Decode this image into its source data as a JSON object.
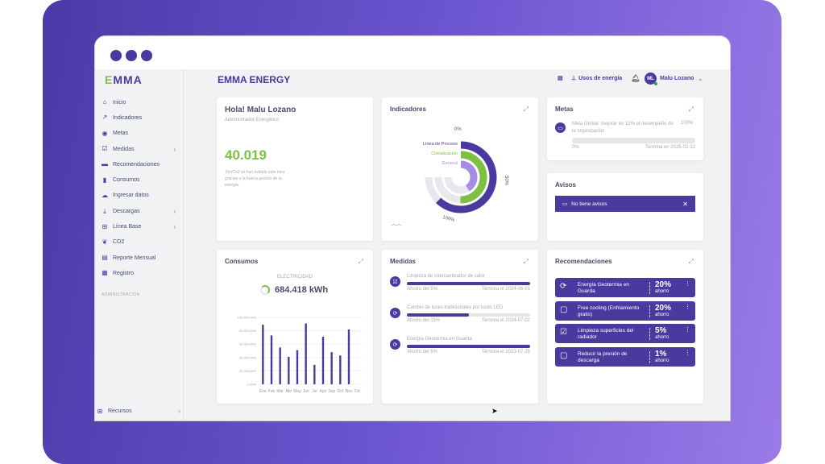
{
  "brand": {
    "logo": "EMMA",
    "title": "EMMA ENERGY"
  },
  "header": {
    "energy_uses": "Usos de energía",
    "user_initials": "ML",
    "user_name": "Malu Lozano"
  },
  "sidebar": {
    "items": [
      {
        "label": "Inicio",
        "icon": "home-icon",
        "glyph": "⌂"
      },
      {
        "label": "Indicadores",
        "icon": "trend-icon",
        "glyph": "↗"
      },
      {
        "label": "Metas",
        "icon": "target-icon",
        "glyph": "◉"
      },
      {
        "label": "Medidas",
        "icon": "checkbox-icon",
        "glyph": "☑",
        "chevron": true
      },
      {
        "label": "Recomendaciones",
        "icon": "comment-icon",
        "glyph": "▬"
      },
      {
        "label": "Consumos",
        "icon": "bar-chart-icon",
        "glyph": "▮"
      },
      {
        "label": "Ingresar datos",
        "icon": "cloud-upload-icon",
        "glyph": "☁"
      },
      {
        "label": "Descargas",
        "icon": "download-icon",
        "glyph": "⤓",
        "chevron": true
      },
      {
        "label": "Línea Base",
        "icon": "presentation-icon",
        "glyph": "⊞",
        "chevron": true
      },
      {
        "label": "CO2",
        "icon": "leaf-icon",
        "glyph": "❦"
      },
      {
        "label": "Reporte Mensual",
        "icon": "report-icon",
        "glyph": "▤"
      },
      {
        "label": "Registro",
        "icon": "calendar-icon",
        "glyph": "▦"
      }
    ],
    "section": "ADMINISTRACIÓN",
    "footer": "Recursos"
  },
  "welcome": {
    "greeting": "Hola! Malu Lozano",
    "role": "Administrador Energético",
    "value": "40.019",
    "caption": "Ton/Co2 se han evitado este mes gracias a la buena gestión de la energía."
  },
  "indicadores": {
    "title": "Indicadores",
    "labels": {
      "p0": "0%",
      "p50": "50%",
      "p100": "100%"
    },
    "series": [
      {
        "name": "Línea de Proceso",
        "value": 83,
        "color": "#4a3aa0"
      },
      {
        "name": "Climatización",
        "value": 67,
        "color": "#7cc142"
      },
      {
        "name": "General",
        "value": 55,
        "color": "#a58de6"
      }
    ]
  },
  "metas": {
    "title": "Metas",
    "text": "Meta Global: mejorar en 12% el desempeño de la organización",
    "pct": "100%",
    "progress": "0%",
    "progress_value": 0,
    "end": "Termina en 2025-02-12"
  },
  "avisos": {
    "title": "Avisos",
    "message": "No tiene avisos"
  },
  "consumos": {
    "title": "Consumos",
    "category": "ELECTRICIDAD",
    "total": "684.418 kWh"
  },
  "chart_data": {
    "type": "bar",
    "categories": [
      "Ene",
      "Feb",
      "Mar",
      "Abr",
      "May",
      "Jun",
      "Jul",
      "Ago",
      "Sep",
      "Oct",
      "Nov",
      "Dic"
    ],
    "values": [
      89000,
      73000,
      55000,
      41000,
      51000,
      91000,
      29000,
      71000,
      48000,
      43000,
      82000,
      0
    ],
    "yticks": [
      "0 kWh",
      "20.000 kWh",
      "40.000 kWh",
      "60.000 kWh",
      "80.000 kWh",
      "100.000 kWh"
    ],
    "ylim": [
      0,
      100000
    ],
    "grid": true,
    "color": "#4a3aa0"
  },
  "medidas": {
    "title": "Medidas",
    "items": [
      {
        "name": "Limpieza de intercambiador de calor",
        "saving": "Ahorro del 5%",
        "end": "Termina el 2024-06-01",
        "progress": 100,
        "glyph": "☑"
      },
      {
        "name": "Cambio de luces tradicionales por luces LED",
        "saving": "Ahorro del 15%",
        "end": "Termina el 2024-07-02",
        "progress": 50,
        "glyph": "⟳"
      },
      {
        "name": "Energía Geotermia en Guarda",
        "saving": "Ahorro del 5%",
        "end": "Termina el 2023-07-25",
        "progress": 100,
        "glyph": "⟳"
      }
    ]
  },
  "recomendaciones": {
    "title": "Recomendaciones",
    "items": [
      {
        "name": "Energía Geotermia en Guarda",
        "pct": "20%",
        "label": "ahorro",
        "glyph": "⟳"
      },
      {
        "name": "Free cooling (Enfriamiento gratis)",
        "pct": "20%",
        "label": "ahorro",
        "glyph": "▢"
      },
      {
        "name": "Limpieza superficies del radiador",
        "pct": "5%",
        "label": "ahorro",
        "glyph": "☑"
      },
      {
        "name": "Reducir la presión de descarga",
        "pct": "1%",
        "label": "ahorro",
        "glyph": "▢"
      }
    ]
  }
}
